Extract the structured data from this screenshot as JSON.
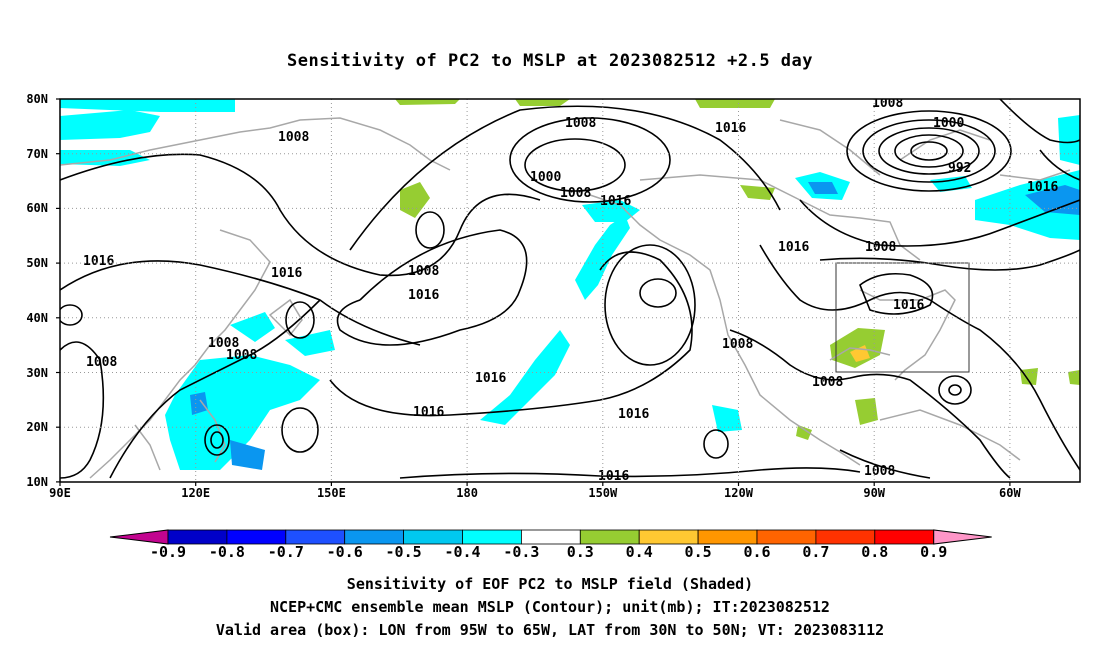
{
  "chart_data": {
    "type": "contour map",
    "title": "Sensitivity of PC2 to MSLP at 2023082512 +2.5 day",
    "lat_ticks": [
      "80N",
      "70N",
      "60N",
      "50N",
      "40N",
      "30N",
      "20N",
      "10N"
    ],
    "lon_ticks": [
      "90E",
      "120E",
      "150E",
      "180",
      "150W",
      "120W",
      "90W",
      "60W"
    ],
    "lon_range": [
      "90E",
      "45W"
    ],
    "lat_range": [
      "10N",
      "80N"
    ],
    "grid": "dotted",
    "shaded_field": "Sensitivity of EOF PC2 to MSLP field",
    "contour_field": "NCEP+CMC ensemble mean MSLP (mb)",
    "contour_labels": [
      "1008",
      "1008",
      "1016",
      "1000",
      "1008",
      "1016",
      "1000",
      "992",
      "1016",
      "1008",
      "1016",
      "1008",
      "1016",
      "1016",
      "1016",
      "1016",
      "1008",
      "1008",
      "1008",
      "1016",
      "1008",
      "1008",
      "1016",
      "1016",
      "1008",
      "1016",
      "1008"
    ],
    "valid_box": {
      "lon": [
        "95W",
        "65W"
      ],
      "lat": [
        "30N",
        "50N"
      ]
    },
    "colorbar": {
      "labels": [
        "-0.9",
        "-0.8",
        "-0.7",
        "-0.6",
        "-0.5",
        "-0.4",
        "-0.3",
        "0.3",
        "0.4",
        "0.5",
        "0.6",
        "0.7",
        "0.8",
        "0.9"
      ],
      "colors": [
        "#c2048f",
        "#0000c8",
        "#0000ff",
        "#1e50ff",
        "#0a96f0",
        "#00c8f0",
        "#00ffff",
        "#ffffff",
        "#96cd32",
        "#ffc832",
        "#ff9600",
        "#ff6400",
        "#ff3200",
        "#ff0000",
        "#ff96c8"
      ]
    },
    "captions": [
      "Sensitivity of EOF PC2 to MSLP field (Shaded)",
      "NCEP+CMC ensemble mean MSLP (Contour); unit(mb); IT:2023082512",
      "Valid area (box): LON from 95W to 65W, LAT from 30N to 50N; VT: 2023083112"
    ]
  }
}
